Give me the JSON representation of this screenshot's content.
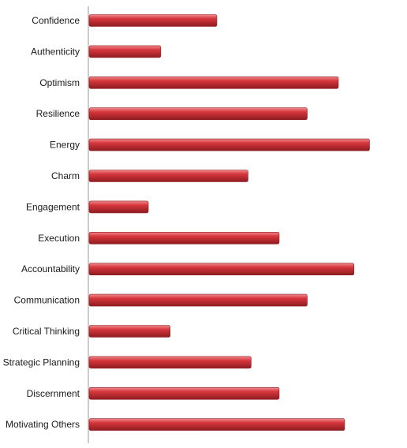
{
  "chart_data": {
    "type": "bar",
    "orientation": "horizontal",
    "title": "",
    "xlabel": "",
    "ylabel": "",
    "categories": [
      "Confidence",
      "Authenticity",
      "Optimism",
      "Resilience",
      "Energy",
      "Charm",
      "Engagement",
      "Execution",
      "Accountability",
      "Communication",
      "Critical Thinking",
      "Strategic Planning",
      "Discernment",
      "Motivating Others"
    ],
    "values": [
      41,
      23,
      80,
      70,
      90,
      51,
      19,
      61,
      85,
      70,
      26,
      52,
      61,
      82
    ],
    "xlim": [
      0,
      100
    ],
    "grid": false,
    "legend": "none",
    "bar_color": "#d6363c",
    "bar_highlight": "#f08a8d",
    "bar_shadow": "#8e1c20"
  }
}
